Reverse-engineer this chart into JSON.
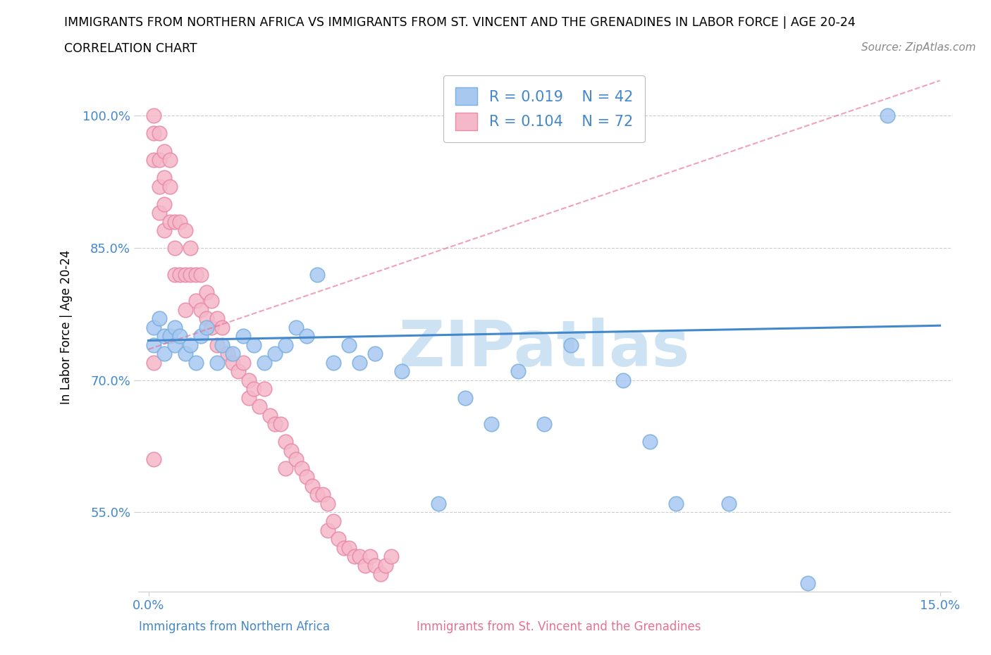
{
  "title_line1": "IMMIGRANTS FROM NORTHERN AFRICA VS IMMIGRANTS FROM ST. VINCENT AND THE GRENADINES IN LABOR FORCE | AGE 20-24",
  "title_line2": "CORRELATION CHART",
  "source_text": "Source: ZipAtlas.com",
  "ylabel": "In Labor Force | Age 20-24",
  "xlabel_blue": "Immigrants from Northern Africa",
  "xlabel_pink": "Immigrants from St. Vincent and the Grenadines",
  "xlim": [
    -0.002,
    0.152
  ],
  "ylim": [
    0.46,
    1.06
  ],
  "x_ticks": [
    0.0,
    0.15
  ],
  "y_ticks": [
    0.55,
    0.7,
    0.85,
    1.0
  ],
  "y_tick_labels": [
    "55.0%",
    "70.0%",
    "85.0%",
    "100.0%"
  ],
  "blue_color": "#a8c8f0",
  "blue_edge": "#7ab0e0",
  "pink_color": "#f5b8c8",
  "pink_edge": "#e88aaa",
  "blue_line_color": "#4488cc",
  "pink_line_color": "#e87090",
  "watermark_color": "#b8d8f0",
  "grid_color": "#cccccc",
  "blue_scatter_x": [
    0.001,
    0.001,
    0.002,
    0.003,
    0.003,
    0.004,
    0.005,
    0.005,
    0.006,
    0.007,
    0.008,
    0.009,
    0.01,
    0.011,
    0.013,
    0.014,
    0.016,
    0.018,
    0.02,
    0.022,
    0.024,
    0.026,
    0.028,
    0.03,
    0.032,
    0.035,
    0.038,
    0.04,
    0.043,
    0.048,
    0.055,
    0.06,
    0.065,
    0.07,
    0.075,
    0.08,
    0.09,
    0.095,
    0.1,
    0.11,
    0.125,
    0.14
  ],
  "blue_scatter_y": [
    0.74,
    0.76,
    0.77,
    0.75,
    0.73,
    0.75,
    0.74,
    0.76,
    0.75,
    0.73,
    0.74,
    0.72,
    0.75,
    0.76,
    0.72,
    0.74,
    0.73,
    0.75,
    0.74,
    0.72,
    0.73,
    0.74,
    0.76,
    0.75,
    0.82,
    0.72,
    0.74,
    0.72,
    0.73,
    0.71,
    0.56,
    0.68,
    0.65,
    0.71,
    0.65,
    0.74,
    0.7,
    0.63,
    0.56,
    0.56,
    0.47,
    1.0
  ],
  "pink_scatter_x": [
    0.001,
    0.001,
    0.001,
    0.001,
    0.001,
    0.002,
    0.002,
    0.002,
    0.002,
    0.003,
    0.003,
    0.003,
    0.003,
    0.004,
    0.004,
    0.004,
    0.005,
    0.005,
    0.005,
    0.006,
    0.006,
    0.007,
    0.007,
    0.007,
    0.008,
    0.008,
    0.009,
    0.009,
    0.01,
    0.01,
    0.011,
    0.011,
    0.012,
    0.012,
    0.013,
    0.013,
    0.014,
    0.015,
    0.016,
    0.017,
    0.018,
    0.019,
    0.019,
    0.02,
    0.021,
    0.022,
    0.023,
    0.024,
    0.025,
    0.026,
    0.026,
    0.027,
    0.028,
    0.029,
    0.03,
    0.031,
    0.032,
    0.033,
    0.034,
    0.034,
    0.035,
    0.036,
    0.037,
    0.038,
    0.039,
    0.04,
    0.041,
    0.042,
    0.043,
    0.044,
    0.045,
    0.046
  ],
  "pink_scatter_y": [
    1.0,
    0.98,
    0.95,
    0.72,
    0.61,
    0.98,
    0.95,
    0.92,
    0.89,
    0.96,
    0.93,
    0.9,
    0.87,
    0.95,
    0.92,
    0.88,
    0.88,
    0.85,
    0.82,
    0.88,
    0.82,
    0.87,
    0.82,
    0.78,
    0.85,
    0.82,
    0.82,
    0.79,
    0.82,
    0.78,
    0.8,
    0.77,
    0.79,
    0.76,
    0.77,
    0.74,
    0.76,
    0.73,
    0.72,
    0.71,
    0.72,
    0.7,
    0.68,
    0.69,
    0.67,
    0.69,
    0.66,
    0.65,
    0.65,
    0.63,
    0.6,
    0.62,
    0.61,
    0.6,
    0.59,
    0.58,
    0.57,
    0.57,
    0.56,
    0.53,
    0.54,
    0.52,
    0.51,
    0.51,
    0.5,
    0.5,
    0.49,
    0.5,
    0.49,
    0.48,
    0.49,
    0.5
  ],
  "blue_trend_x0": 0.0,
  "blue_trend_y0": 0.745,
  "blue_trend_x1": 0.15,
  "blue_trend_y1": 0.762,
  "pink_trend_x0": 0.0,
  "pink_trend_y0": 0.735,
  "pink_trend_x1": 0.15,
  "pink_trend_y1": 1.04
}
